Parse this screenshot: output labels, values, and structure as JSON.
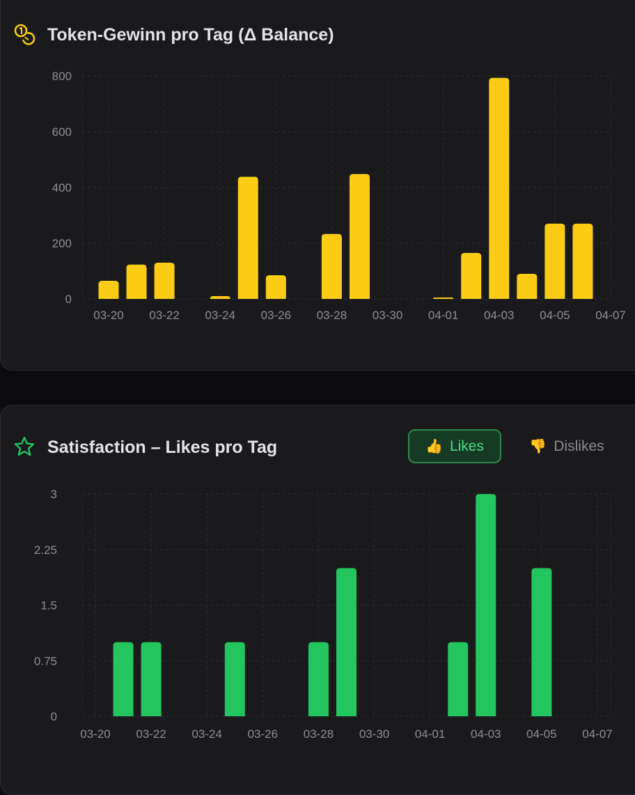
{
  "token_card": {
    "title": "Token-Gewinn pro Tag (Δ Balance)",
    "icon": "coins-icon",
    "accent": "#facc15"
  },
  "satisfaction_card": {
    "title": "Satisfaction – Likes pro Tag",
    "icon": "star-icon",
    "accent": "#22c55e",
    "toggle": {
      "likes_label": "Likes",
      "likes_icon": "👍",
      "dislikes_label": "Dislikes",
      "dislikes_icon": "👎",
      "selected": "Likes"
    }
  },
  "chart_data": [
    {
      "type": "bar",
      "title": "Token-Gewinn pro Tag (Δ Balance)",
      "color": "#facc15",
      "x_type": "date",
      "x": [
        "03-20",
        "03-21",
        "03-22",
        "03-24",
        "03-25",
        "03-26",
        "03-28",
        "03-29",
        "04-01",
        "04-02",
        "04-03",
        "04-04",
        "04-05",
        "04-06"
      ],
      "values": [
        65,
        123,
        130,
        10,
        438,
        85,
        233,
        448,
        5,
        165,
        793,
        90,
        270,
        270
      ],
      "xlim": [
        "03-18",
        "04-07"
      ],
      "xticks": [
        "03-20",
        "03-22",
        "03-24",
        "03-26",
        "03-28",
        "03-30",
        "04-01",
        "04-03",
        "04-05",
        "04-07"
      ],
      "ylim": [
        0,
        800
      ],
      "yticks": [
        "0",
        "200",
        "400",
        "600",
        "800"
      ],
      "grid": true,
      "xlabel": "",
      "ylabel": ""
    },
    {
      "type": "bar",
      "title": "Satisfaction – Likes pro Tag",
      "color": "#22c55e",
      "x_type": "date",
      "x": [
        "03-21",
        "03-22",
        "03-25",
        "03-28",
        "03-29",
        "04-02",
        "04-03",
        "04-05"
      ],
      "values": [
        1,
        1,
        1,
        1,
        2,
        1,
        3,
        2
      ],
      "xlim": [
        "03-18",
        "04-07"
      ],
      "xticks": [
        "03-20",
        "03-22",
        "03-24",
        "03-26",
        "03-28",
        "03-30",
        "04-01",
        "04-03",
        "04-05",
        "04-07"
      ],
      "ylim": [
        0,
        3
      ],
      "yticks": [
        "0",
        "0.75",
        "1.5",
        "2.25",
        "3"
      ],
      "grid": true,
      "xlabel": "",
      "ylabel": ""
    }
  ]
}
